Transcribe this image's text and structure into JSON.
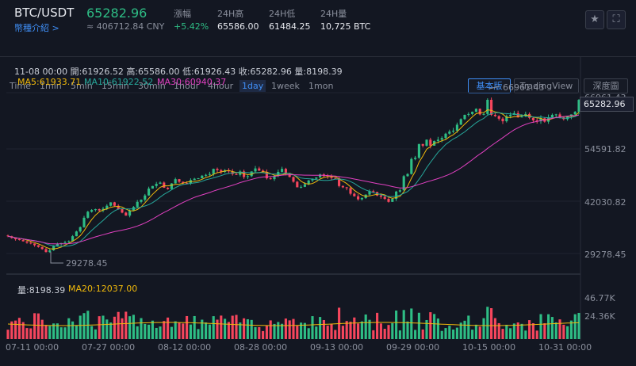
{
  "header": {
    "pair": "BTC/USDT",
    "price": "65282.96",
    "intro_link": "幣種介紹 >",
    "cny": "≈ 406712.84 CNY",
    "stats": [
      {
        "label": "漲幅",
        "value": "+5.42%"
      },
      {
        "label": "24H高",
        "value": "65586.00"
      },
      {
        "label": "24H低",
        "value": "61484.25"
      },
      {
        "label": "24H量",
        "value": "10,725 BTC"
      }
    ],
    "star_icon": "star-icon",
    "fullscreen_icon": "fullscreen-icon"
  },
  "toolbar": {
    "intervals": [
      "Time",
      "1min",
      "5min",
      "15min",
      "30min",
      "1hour",
      "4hour",
      "1day",
      "1week",
      "1mon"
    ],
    "active_interval": "1day",
    "views": [
      "基本版",
      "TradingView",
      "深度圖"
    ],
    "active_view": "基本版"
  },
  "info": {
    "ohlc": "11-08 00:00  開:61926.52 高:65586.00 低:61926.43 收:65282.96 量:8198.39",
    "ma5": "MA5:61933.71",
    "ma10": "MA10:61922.52",
    "ma30": "MA30:60940.37"
  },
  "volume_info": {
    "vol": "量:8198.39",
    "ma20": "MA20:12037.00"
  },
  "annotations": {
    "high": "66961.43",
    "low": "29278.45"
  },
  "current_tag": "65282.96",
  "colors": {
    "up": "#2ebd85",
    "down": "#f6465d",
    "ma5": "#f0b90b",
    "ma10": "#26a69a",
    "ma30": "#e040c0",
    "accent": "#3f8ef5"
  },
  "chart_data": {
    "type": "candlestick",
    "price_axis_ticks": [
      "66961.43",
      "54591.82",
      "42030.82",
      "29278.45"
    ],
    "volume_axis_ticks": [
      "46.77K",
      "24.36K"
    ],
    "x_ticks": [
      "07-11 00:00",
      "07-27 00:00",
      "08-12 00:00",
      "08-28 00:00",
      "09-13 00:00",
      "09-29 00:00",
      "10-15 00:00",
      "10-31 00:00"
    ],
    "close_series": [
      33500,
      33100,
      32800,
      32600,
      32300,
      32000,
      31800,
      31400,
      31000,
      30500,
      29800,
      30200,
      31200,
      31700,
      31900,
      32100,
      32300,
      33500,
      34600,
      35600,
      37800,
      39200,
      39600,
      39800,
      39500,
      39900,
      40600,
      41400,
      40600,
      39800,
      39000,
      38300,
      39500,
      40300,
      41500,
      42000,
      43000,
      44600,
      45200,
      45700,
      46000,
      44800,
      44500,
      45800,
      46800,
      46200,
      45900,
      45800,
      46600,
      46900,
      47000,
      47600,
      47800,
      48000,
      49200,
      48900,
      48500,
      48900,
      48600,
      48000,
      47800,
      48600,
      47300,
      47500,
      48600,
      49300,
      48800,
      48500,
      47000,
      46800,
      47600,
      48500,
      49200,
      48200,
      47300,
      46200,
      44900,
      45000,
      45600,
      46500,
      46900,
      47200,
      47900,
      47500,
      47400,
      47100,
      47000,
      45200,
      44900,
      44700,
      43400,
      42800,
      42100,
      42400,
      43200,
      44000,
      43800,
      43000,
      42700,
      42200,
      41500,
      42200,
      43900,
      44200,
      47500,
      48000,
      51500,
      51800,
      55000,
      54600,
      56000,
      54600,
      55700,
      56000,
      56400,
      57400,
      57900,
      58100,
      59500,
      60800,
      61800,
      62000,
      62500,
      63200,
      61900,
      62000,
      65300,
      61800,
      61500,
      60900,
      60300,
      61500,
      61800,
      62200,
      61200,
      61500,
      62000,
      61100,
      60500,
      60300,
      61000,
      60200,
      61200,
      61800,
      61900,
      61200,
      60800,
      61500,
      61900,
      62500,
      65282.96
    ]
  }
}
